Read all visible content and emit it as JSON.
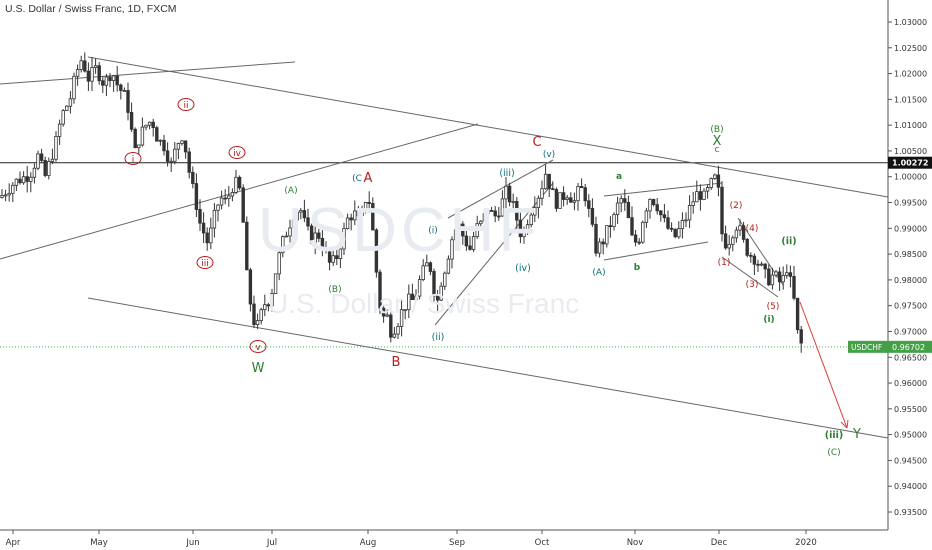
{
  "header": {
    "title": "U.S. Dollar / Swiss Franc, 1D, FXCM"
  },
  "watermark": {
    "symbol": "USDCHF",
    "name": "U.S. Dollar / Swiss Franc"
  },
  "colors": {
    "up": "#333333",
    "down": "#333333",
    "line": "#555555",
    "red": "#b71c1c",
    "teal": "#0f6e78",
    "green": "#2e7d32",
    "price_tag": "#43a047",
    "current_line": "#4caf50",
    "arrow": "#e53935"
  },
  "price_labels": {
    "level_mark": "1.00272",
    "current_symbol": "USDCHF",
    "current_value": "0.96702"
  },
  "chart_data": {
    "type": "candlestick",
    "y_axis_ticks": [
      "1.03000",
      "1.02500",
      "1.02000",
      "1.01500",
      "1.01000",
      "1.00500",
      "1.00000",
      "0.99500",
      "0.99000",
      "0.98500",
      "0.98000",
      "0.97500",
      "0.97000",
      "0.96500",
      "0.96000",
      "0.95500",
      "0.95000",
      "0.94500",
      "0.94000",
      "0.93500"
    ],
    "x_axis_ticks": [
      "Apr",
      "May",
      "Jun",
      "Jul",
      "Aug",
      "Sep",
      "Oct",
      "Nov",
      "Dec",
      "2020"
    ],
    "ylim": [
      0.9315,
      1.0335
    ],
    "horizontal_level": 1.00272,
    "current_price": 0.96702,
    "close_path": [
      [
        0,
        0.996
      ],
      [
        15,
        0.999
      ],
      [
        30,
        1.0005
      ],
      [
        38,
        1.004
      ],
      [
        45,
        1.0
      ],
      [
        55,
        1.006
      ],
      [
        62,
        1.012
      ],
      [
        70,
        1.015
      ],
      [
        76,
        1.02
      ],
      [
        82,
        1.023
      ],
      [
        88,
        1.019
      ],
      [
        96,
        1.021
      ],
      [
        104,
        1.018
      ],
      [
        112,
        1.0205
      ],
      [
        118,
        1.0175
      ],
      [
        124,
        1.016
      ],
      [
        130,
        1.012
      ],
      [
        134,
        1.004
      ],
      [
        140,
        1.008
      ],
      [
        146,
        1.01
      ],
      [
        152,
        1.011
      ],
      [
        158,
        1.007
      ],
      [
        163,
        1.0065
      ],
      [
        168,
        1.004
      ],
      [
        172,
        1.002
      ],
      [
        176,
        1.006
      ],
      [
        182,
        1.008
      ],
      [
        186,
        1.005
      ],
      [
        190,
        1.0
      ],
      [
        196,
        0.995
      ],
      [
        200,
        0.991
      ],
      [
        204,
        0.989
      ],
      [
        208,
        0.987
      ],
      [
        214,
        0.992
      ],
      [
        220,
        0.996
      ],
      [
        226,
        0.995
      ],
      [
        232,
        0.998
      ],
      [
        238,
        0.999
      ],
      [
        242,
        0.995
      ],
      [
        246,
        0.982
      ],
      [
        250,
        0.976
      ],
      [
        254,
        0.972
      ],
      [
        258,
        0.971
      ],
      [
        262,
        0.974
      ],
      [
        266,
        0.976
      ],
      [
        270,
        0.976
      ],
      [
        276,
        0.982
      ],
      [
        282,
        0.987
      ],
      [
        288,
        0.99
      ],
      [
        294,
        0.993
      ],
      [
        300,
        0.994
      ],
      [
        306,
        0.99
      ],
      [
        312,
        0.988
      ],
      [
        318,
        0.989
      ],
      [
        324,
        0.986
      ],
      [
        330,
        0.983
      ],
      [
        336,
        0.984
      ],
      [
        342,
        0.988
      ],
      [
        348,
        0.992
      ],
      [
        354,
        0.993
      ],
      [
        360,
        0.991
      ],
      [
        366,
        0.996
      ],
      [
        370,
        0.995
      ],
      [
        374,
        0.987
      ],
      [
        378,
        0.978
      ],
      [
        382,
        0.972
      ],
      [
        386,
        0.974
      ],
      [
        390,
        0.97
      ],
      [
        396,
        0.971
      ],
      [
        402,
        0.974
      ],
      [
        408,
        0.976
      ],
      [
        414,
        0.976
      ],
      [
        420,
        0.98
      ],
      [
        426,
        0.983
      ],
      [
        432,
        0.982
      ],
      [
        436,
        0.974
      ],
      [
        440,
        0.979
      ],
      [
        446,
        0.983
      ],
      [
        452,
        0.988
      ],
      [
        458,
        0.991
      ],
      [
        464,
        0.988
      ],
      [
        470,
        0.986
      ],
      [
        476,
        0.99
      ],
      [
        482,
        0.991
      ],
      [
        488,
        0.994
      ],
      [
        494,
        0.992
      ],
      [
        500,
        0.994
      ],
      [
        506,
        0.997
      ],
      [
        512,
        0.995
      ],
      [
        518,
        0.991
      ],
      [
        522,
        0.988
      ],
      [
        528,
        0.992
      ],
      [
        534,
        0.995
      ],
      [
        540,
        0.997
      ],
      [
        546,
        1.001
      ],
      [
        550,
        0.998
      ],
      [
        556,
        0.995
      ],
      [
        562,
        0.996
      ],
      [
        568,
        0.997
      ],
      [
        574,
        0.995
      ],
      [
        580,
        0.998
      ],
      [
        586,
        0.996
      ],
      [
        592,
        0.99
      ],
      [
        596,
        0.986
      ],
      [
        602,
        0.987
      ],
      [
        608,
        0.99
      ],
      [
        614,
        0.992
      ],
      [
        620,
        0.996
      ],
      [
        626,
        0.994
      ],
      [
        632,
        0.988
      ],
      [
        638,
        0.987
      ],
      [
        644,
        0.993
      ],
      [
        650,
        0.996
      ],
      [
        656,
        0.995
      ],
      [
        662,
        0.992
      ],
      [
        668,
        0.99
      ],
      [
        674,
        0.988
      ],
      [
        680,
        0.99
      ],
      [
        686,
        0.992
      ],
      [
        692,
        0.995
      ],
      [
        698,
        0.997
      ],
      [
        704,
        0.996
      ],
      [
        710,
        0.998
      ],
      [
        714,
        1.0
      ],
      [
        718,
        0.998
      ],
      [
        722,
        0.989
      ],
      [
        726,
        0.987
      ],
      [
        730,
        0.988
      ],
      [
        734,
        0.99
      ],
      [
        738,
        0.991
      ],
      [
        742,
        0.988
      ],
      [
        746,
        0.986
      ],
      [
        750,
        0.985
      ],
      [
        756,
        0.984
      ],
      [
        762,
        0.982
      ],
      [
        768,
        0.98
      ],
      [
        774,
        0.981
      ],
      [
        778,
        0.98
      ],
      [
        782,
        0.979
      ],
      [
        786,
        0.983
      ],
      [
        790,
        0.98
      ],
      [
        794,
        0.976
      ],
      [
        798,
        0.969
      ],
      [
        802,
        0.9672
      ]
    ]
  },
  "wave_labels": [
    {
      "text": "i",
      "color": "red",
      "circle": true
    },
    {
      "text": "ii",
      "color": "red",
      "circle": true
    },
    {
      "text": "iii",
      "color": "red",
      "circle": true
    },
    {
      "text": "iv",
      "color": "red",
      "circle": true
    },
    {
      "text": "v",
      "color": "red",
      "circle": true
    },
    {
      "text": "W",
      "color": "green"
    },
    {
      "text": "(A)",
      "color": "green"
    },
    {
      "text": "(B)",
      "color": "green"
    },
    {
      "text": "(C",
      "color": "teal"
    },
    {
      "text": "A",
      "color": "red"
    },
    {
      "text": "B",
      "color": "red"
    },
    {
      "text": "C",
      "color": "red"
    },
    {
      "text": "(i)",
      "color": "teal"
    },
    {
      "text": "(ii)",
      "color": "teal"
    },
    {
      "text": "(iii)",
      "color": "teal"
    },
    {
      "text": "(iv)",
      "color": "teal"
    },
    {
      "text": "(v)",
      "color": "teal"
    },
    {
      "text": "a",
      "color": "green"
    },
    {
      "text": "b",
      "color": "green"
    },
    {
      "text": "c",
      "color": "green"
    },
    {
      "text": "(A)",
      "color": "teal"
    },
    {
      "text": "(B)",
      "color": "green"
    },
    {
      "text": "X",
      "color": "green"
    },
    {
      "text": "(1)",
      "color": "red"
    },
    {
      "text": "(2)",
      "color": "red"
    },
    {
      "text": "(3)",
      "color": "red"
    },
    {
      "text": "(4)",
      "color": "red"
    },
    {
      "text": "(5)",
      "color": "red"
    },
    {
      "text": "(i)",
      "color": "green"
    },
    {
      "text": "(ii)",
      "color": "green"
    },
    {
      "text": "(iii)",
      "color": "green"
    },
    {
      "text": "Y",
      "color": "green"
    },
    {
      "text": "(C)",
      "color": "green"
    }
  ]
}
